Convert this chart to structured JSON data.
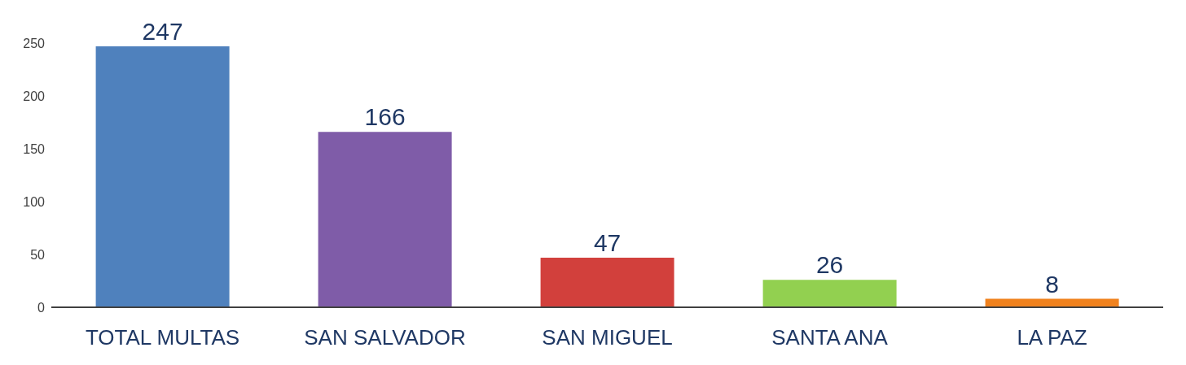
{
  "chart_data": {
    "type": "bar",
    "categories": [
      "TOTAL MULTAS",
      "SAN SALVADOR",
      "SAN MIGUEL",
      "SANTA ANA",
      "LA PAZ"
    ],
    "values": [
      247,
      166,
      47,
      26,
      8
    ],
    "colors": [
      "#4f81bd",
      "#7f5ca8",
      "#d2403c",
      "#92d050",
      "#f0821e"
    ],
    "ylim": [
      0,
      250
    ],
    "yticks": [
      0,
      50,
      100,
      150,
      200,
      250
    ],
    "grid": false,
    "data_labels": true
  }
}
